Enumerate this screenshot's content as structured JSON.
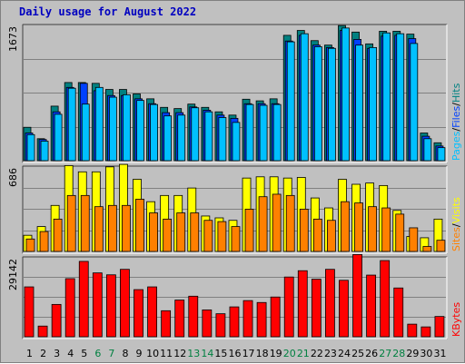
{
  "chart_data": {
    "type": "bar",
    "title": "Daily usage for August 2022",
    "categories": [
      "1",
      "2",
      "3",
      "4",
      "5",
      "6",
      "7",
      "8",
      "9",
      "10",
      "11",
      "12",
      "13",
      "14",
      "15",
      "16",
      "17",
      "18",
      "19",
      "20",
      "21",
      "22",
      "23",
      "24",
      "25",
      "26",
      "27",
      "28",
      "29",
      "30",
      "31"
    ],
    "weekend_days": [
      "6",
      "7",
      "13",
      "14",
      "20",
      "21",
      "27",
      "28"
    ],
    "colors": {
      "day_weekday": "#000000",
      "day_weekend": "#008040",
      "hits": "#00c0ff",
      "files": "#0040ff",
      "pages": "#008080",
      "visits": "#ffff00",
      "sites": "#ff8000",
      "kbytes": "#ff0000"
    },
    "panels": [
      {
        "name": "requests",
        "ymax_label": "1673",
        "ymax": 1673,
        "legend": [
          "Pages",
          "Files",
          "Hits"
        ],
        "legend_colors": [
          "#00c0ff",
          "#0040ff",
          "#008080"
        ],
        "series": [
          {
            "name": "Pages",
            "values": [
              410,
              270,
              670,
              960,
              960,
              950,
              875,
              875,
              820,
              760,
              655,
              640,
              695,
              655,
              600,
              560,
              755,
              735,
              760,
              1540,
              1600,
              1475,
              1420,
              1660,
              1580,
              1435,
              1590,
              1590,
              1555,
              340,
              220
            ]
          },
          {
            "name": "Files",
            "values": [
              340,
              260,
              600,
              900,
              950,
              860,
              800,
              800,
              760,
              700,
              590,
              590,
              660,
              620,
              560,
              520,
              700,
              700,
              700,
              1470,
              1540,
              1420,
              1390,
              1600,
              1490,
              1380,
              1530,
              1540,
              1500,
              300,
              180
            ]
          },
          {
            "name": "Hits",
            "values": [
              320,
              240,
              570,
              890,
              695,
              900,
              780,
              810,
              740,
              690,
              550,
              560,
              650,
              600,
              530,
              470,
              690,
              680,
              690,
              1460,
              1560,
              1400,
              1380,
              1630,
              1420,
              1390,
              1570,
              1560,
              1440,
              270,
              160
            ]
          }
        ]
      },
      {
        "name": "visitors",
        "ymax_label": "686",
        "ymax": 686,
        "legend": [
          "Sites",
          "Visits"
        ],
        "legend_colors": [
          "#ff8000",
          "#ffff00"
        ],
        "series": [
          {
            "name": "Visits",
            "values": [
              130,
              200,
              370,
              690,
              640,
              640,
              680,
              700,
              580,
              400,
              450,
              450,
              510,
              285,
              270,
              250,
              590,
              600,
              600,
              590,
              595,
              430,
              350,
              580,
              540,
              550,
              530,
              330,
              120,
              110,
              260
            ]
          },
          {
            "name": "Sites",
            "values": [
              100,
              160,
              260,
              450,
              450,
              360,
              370,
              370,
              420,
              310,
              260,
              310,
              310,
              250,
              240,
              200,
              340,
              440,
              460,
              450,
              340,
              260,
              250,
              400,
              390,
              360,
              350,
              300,
              190,
              40,
              90
            ]
          }
        ]
      },
      {
        "name": "traffic",
        "ymax_label": "29142",
        "ymax": 29142,
        "legend": [
          "KBytes"
        ],
        "legend_colors": [
          "#ff0000"
        ],
        "series": [
          {
            "name": "KBytes",
            "values": [
              18200,
              3900,
              11800,
              21200,
              27500,
              23300,
              22600,
              24600,
              17200,
              18200,
              9500,
              13400,
              14800,
              9800,
              8400,
              10900,
              13200,
              12500,
              14500,
              21800,
              24100,
              21000,
              24600,
              20600,
              30000,
              22500,
              27800,
              17800,
              4600,
              3600,
              7400
            ]
          }
        ]
      }
    ]
  }
}
